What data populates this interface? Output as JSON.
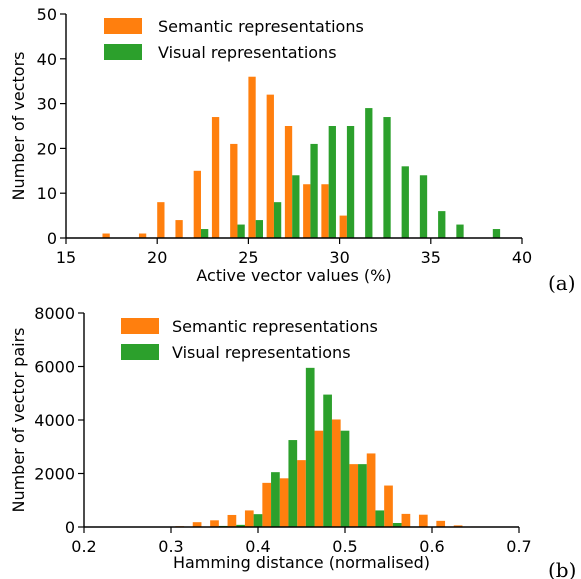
{
  "colors": {
    "semantic": "#ff7f0e",
    "visual": "#2ca02c",
    "axis": "#000000"
  },
  "chart_data": [
    {
      "type": "bar",
      "panel_label": "(a)",
      "title": "",
      "xlabel": "Active vector values (%)",
      "ylabel": "Number of vectors",
      "xlim": [
        15,
        40
      ],
      "ylim": [
        0,
        50
      ],
      "xticks": [
        15,
        20,
        25,
        30,
        35,
        40
      ],
      "yticks": [
        0,
        10,
        20,
        30,
        40,
        50
      ],
      "bar_width": 0.4,
      "legend_position": "upper-left",
      "series": [
        {
          "name": "Semantic representations",
          "x": [
            17.2,
            19.2,
            20.2,
            21.2,
            22.2,
            23.2,
            24.2,
            25.2,
            26.2,
            27.2,
            28.2,
            29.2,
            30.2
          ],
          "values": [
            1,
            1,
            8,
            4,
            15,
            27,
            21,
            36,
            32,
            25,
            12,
            12,
            5
          ]
        },
        {
          "name": "Visual representations",
          "x": [
            22.6,
            24.6,
            25.6,
            26.6,
            27.6,
            28.6,
            29.6,
            30.6,
            31.6,
            32.6,
            33.6,
            34.6,
            35.6,
            36.6,
            38.6
          ],
          "values": [
            2,
            3,
            4,
            8,
            14,
            21,
            25,
            25,
            29,
            27,
            16,
            14,
            6,
            3,
            2
          ]
        }
      ]
    },
    {
      "type": "bar",
      "panel_label": "(b)",
      "title": "",
      "xlabel": "Hamming distance (normalised)",
      "ylabel": "Number of vector pairs",
      "xlim": [
        0.2,
        0.7
      ],
      "ylim": [
        0,
        8000
      ],
      "xticks": [
        0.2,
        0.3,
        0.4,
        0.5,
        0.6,
        0.7
      ],
      "xtick_labels": [
        "0.2",
        "0.3",
        "0.4",
        "0.5",
        "0.6",
        "0.7"
      ],
      "yticks": [
        0,
        2000,
        4000,
        6000,
        8000
      ],
      "bar_width": 0.01,
      "legend_position": "upper-left",
      "series": [
        {
          "name": "Semantic representations",
          "x": [
            0.31,
            0.33,
            0.35,
            0.37,
            0.39,
            0.41,
            0.43,
            0.45,
            0.47,
            0.49,
            0.51,
            0.53,
            0.55,
            0.57,
            0.59,
            0.61,
            0.63,
            0.65
          ],
          "values": [
            30,
            180,
            250,
            450,
            620,
            1650,
            1820,
            2500,
            3600,
            4020,
            2350,
            2750,
            1550,
            490,
            460,
            230,
            60,
            20
          ]
        },
        {
          "name": "Visual representations",
          "x": [
            0.34,
            0.36,
            0.38,
            0.4,
            0.42,
            0.44,
            0.46,
            0.48,
            0.5,
            0.52,
            0.54,
            0.56,
            0.58
          ],
          "values": [
            10,
            40,
            80,
            480,
            2050,
            3250,
            5950,
            4950,
            3600,
            2350,
            620,
            150,
            20
          ]
        }
      ]
    }
  ]
}
